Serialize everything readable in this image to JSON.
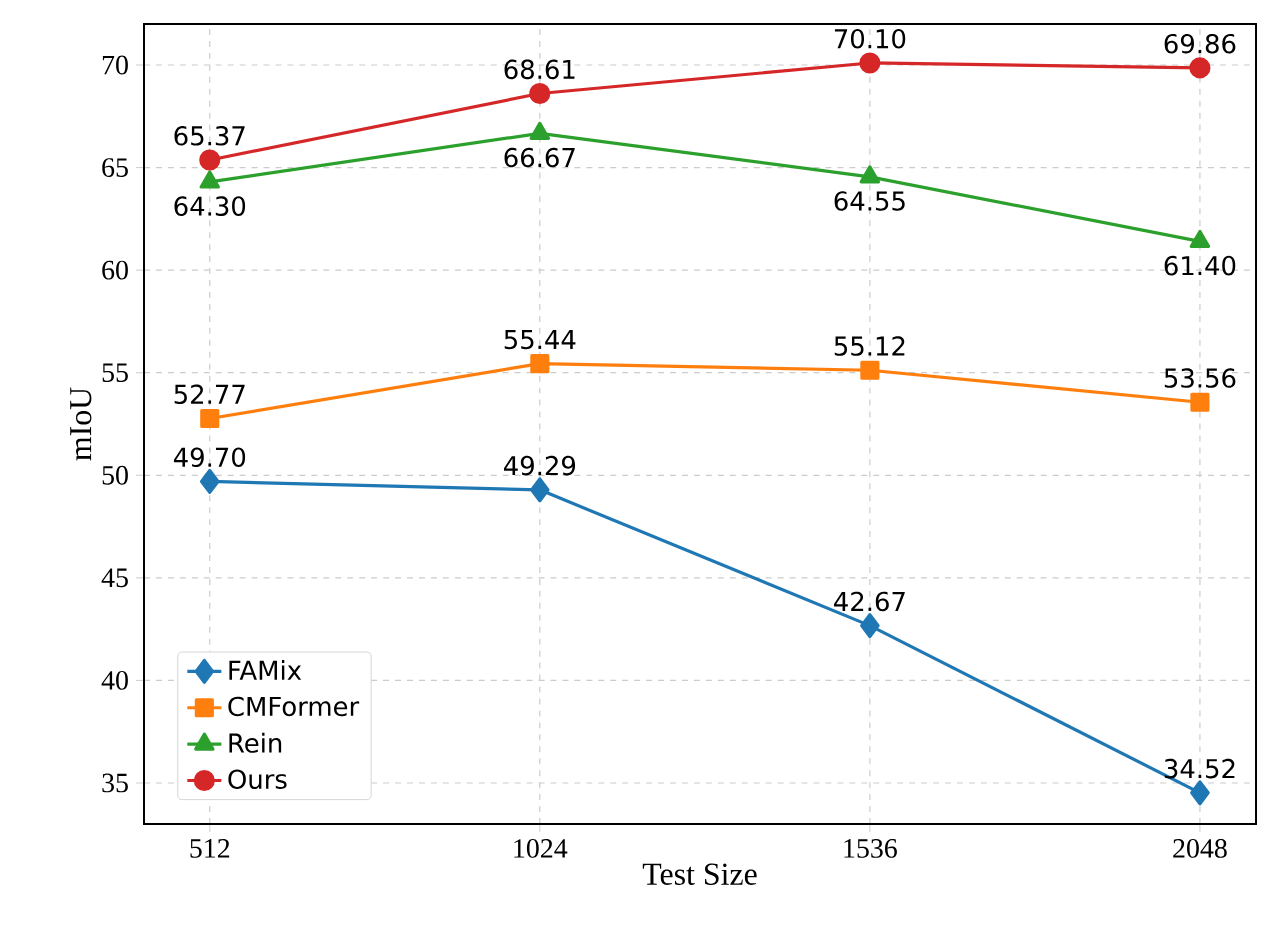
{
  "chart_data": {
    "type": "line",
    "xlabel": "Test Size",
    "ylabel": "mIoU",
    "x": [
      512,
      1024,
      1536,
      2048
    ],
    "series": [
      {
        "name": "FAMix",
        "color": "#1f77b4",
        "marker": "diamond",
        "values": [
          49.7,
          49.29,
          42.67,
          34.52
        ],
        "value_labels": [
          "49.70",
          "49.29",
          "42.67",
          "34.52"
        ]
      },
      {
        "name": "CMFormer",
        "color": "#ff7f0e",
        "marker": "square",
        "values": [
          52.77,
          55.44,
          55.12,
          53.56
        ],
        "value_labels": [
          "52.77",
          "55.44",
          "55.12",
          "53.56"
        ]
      },
      {
        "name": "Rein",
        "color": "#2ca02c",
        "marker": "triangle",
        "values": [
          64.3,
          66.67,
          64.55,
          61.4
        ],
        "value_labels": [
          "64.30",
          "66.67",
          "64.55",
          "61.40"
        ]
      },
      {
        "name": "Ours",
        "color": "#d62728",
        "marker": "circle",
        "values": [
          65.37,
          68.61,
          70.1,
          69.86
        ],
        "value_labels": [
          "65.37",
          "68.61",
          "70.10",
          "69.86"
        ]
      }
    ],
    "xlim": [
      410,
      2135
    ],
    "ylim": [
      33,
      72
    ],
    "xticks": [
      512,
      1024,
      1536,
      2048
    ],
    "yticks": [
      35,
      40,
      45,
      50,
      55,
      60,
      65,
      70
    ],
    "grid": true,
    "legend": "bottom left",
    "line_style": "solid"
  }
}
